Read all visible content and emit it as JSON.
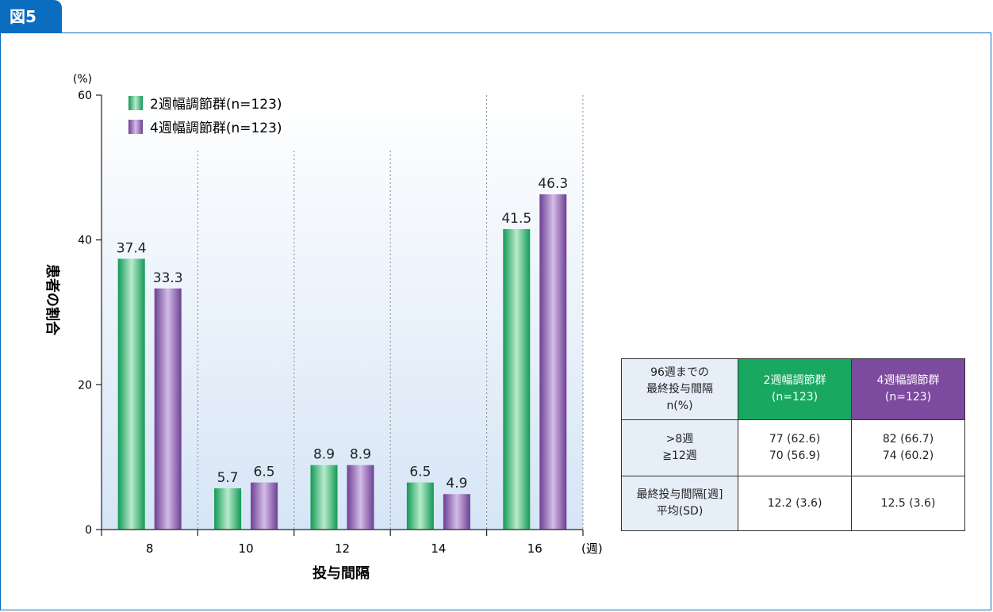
{
  "figure_label": "図5",
  "chart_data": {
    "type": "bar",
    "ylabel_unit": "(%)",
    "ylabel": "患者の割合",
    "xlabel": "投与間隔",
    "xunit": "(週)",
    "ylim": [
      0,
      60
    ],
    "yticks": [
      0,
      20,
      40,
      60
    ],
    "categories": [
      "8",
      "10",
      "12",
      "14",
      "16"
    ],
    "series": [
      {
        "name": "2週幅調節群(n=123)",
        "values": [
          37.4,
          5.7,
          8.9,
          6.5,
          41.5
        ],
        "color": "#19a862"
      },
      {
        "name": "4週幅調節群(n=123)",
        "values": [
          33.3,
          6.5,
          8.9,
          4.9,
          46.3
        ],
        "color": "#7c4a9e"
      }
    ],
    "data_labels": [
      [
        "37.4",
        "5.7",
        "8.9",
        "6.5",
        "41.5"
      ],
      [
        "33.3",
        "6.5",
        "8.9",
        "4.9",
        "46.3"
      ]
    ],
    "grid": "vertical-dotted",
    "legend": "top-left"
  },
  "table": {
    "header": {
      "corner": [
        "96週までの",
        "最終投与間隔",
        "n(%)"
      ],
      "group2": [
        "2週幅調節群",
        "(n=123)"
      ],
      "group4": [
        "4週幅調節群",
        "(n=123)"
      ]
    },
    "rows": [
      {
        "label": [
          ">8週",
          "≧12週"
        ],
        "group2": [
          "77 (62.6)",
          "70 (56.9)"
        ],
        "group4": [
          "82 (66.7)",
          "74 (60.2)"
        ]
      },
      {
        "label": [
          "最終投与間隔[週]",
          "平均(SD)"
        ],
        "group2": [
          "12.2 (3.6)"
        ],
        "group4": [
          "12.5 (3.6)"
        ]
      }
    ]
  }
}
